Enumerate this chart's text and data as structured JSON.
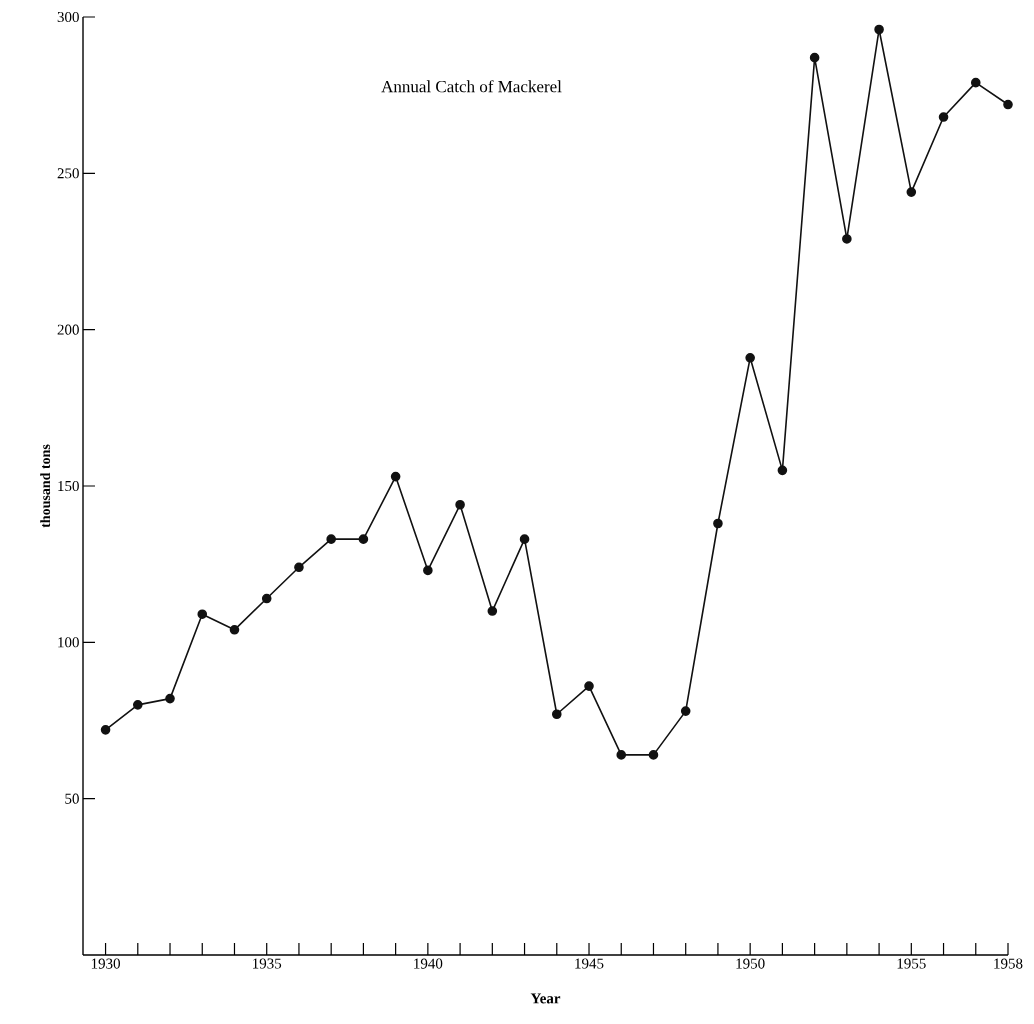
{
  "chart_data": {
    "type": "line",
    "title": "Annual Catch of Mackerel",
    "xlabel": "Year",
    "ylabel": "thousand tons",
    "x": [
      1930,
      1931,
      1932,
      1933,
      1934,
      1935,
      1936,
      1937,
      1938,
      1939,
      1940,
      1941,
      1942,
      1943,
      1944,
      1945,
      1946,
      1947,
      1948,
      1949,
      1950,
      1951,
      1952,
      1953,
      1954,
      1955,
      1956,
      1957,
      1958
    ],
    "values": [
      72,
      80,
      82,
      109,
      104,
      114,
      124,
      133,
      133,
      153,
      123,
      144,
      110,
      133,
      77,
      86,
      64,
      64,
      78,
      138,
      191,
      155,
      287,
      229,
      296,
      244,
      268,
      279,
      272
    ],
    "color": "#111111",
    "marker": "circle",
    "line_style": "solid",
    "grid": false,
    "xlim": [
      1929.3,
      1958
    ],
    "ylim": [
      0,
      300
    ],
    "xticks": [
      1930,
      {
        "value": 1931,
        "label": null
      },
      {
        "value": 1932,
        "label": null
      },
      {
        "value": 1933,
        "label": null
      },
      {
        "value": 1934,
        "label": null
      },
      1935,
      {
        "value": 1936,
        "label": null
      },
      {
        "value": 1937,
        "label": null
      },
      {
        "value": 1938,
        "label": null
      },
      {
        "value": 1939,
        "label": null
      },
      1940,
      {
        "value": 1941,
        "label": null
      },
      {
        "value": 1942,
        "label": null
      },
      {
        "value": 1943,
        "label": null
      },
      {
        "value": 1944,
        "label": null
      },
      1945,
      {
        "value": 1946,
        "label": null
      },
      {
        "value": 1947,
        "label": null
      },
      {
        "value": 1948,
        "label": null
      },
      {
        "value": 1949,
        "label": null
      },
      1950,
      {
        "value": 1951,
        "label": null
      },
      {
        "value": 1952,
        "label": null
      },
      {
        "value": 1953,
        "label": null
      },
      {
        "value": 1954,
        "label": null
      },
      1955,
      {
        "value": 1956,
        "label": null
      },
      {
        "value": 1957,
        "label": null
      },
      1958
    ],
    "yticks": [
      50,
      100,
      150,
      200,
      250,
      300
    ]
  }
}
